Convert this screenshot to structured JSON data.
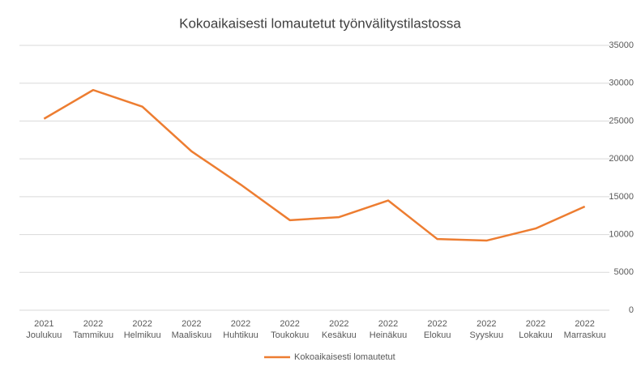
{
  "chart_data": {
    "type": "line",
    "title": "Kokoaikaisesti lomautetut työnvälitystilastossa",
    "categories": [
      [
        "2021",
        "Joulukuu"
      ],
      [
        "2022",
        "Tammikuu"
      ],
      [
        "2022",
        "Helmikuu"
      ],
      [
        "2022",
        "Maaliskuu"
      ],
      [
        "2022",
        "Huhtikuu"
      ],
      [
        "2022",
        "Toukokuu"
      ],
      [
        "2022",
        "Kesäkuu"
      ],
      [
        "2022",
        "Heinäkuu"
      ],
      [
        "2022",
        "Elokuu"
      ],
      [
        "2022",
        "Syyskuu"
      ],
      [
        "2022",
        "Lokakuu"
      ],
      [
        "2022",
        "Marraskuu"
      ]
    ],
    "series": [
      {
        "name": "Kokoaikaisesti lomautetut",
        "color": "#ed7d31",
        "values": [
          25300,
          29100,
          26900,
          21000,
          16600,
          11900,
          12300,
          14500,
          9400,
          9200,
          10800,
          13700
        ]
      }
    ],
    "ylim": [
      0,
      35000
    ],
    "yticks": [
      0,
      5000,
      10000,
      15000,
      20000,
      25000,
      30000,
      35000
    ],
    "grid": true,
    "legend": "bottom"
  }
}
